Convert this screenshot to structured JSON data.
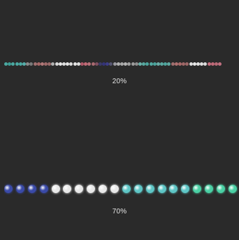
{
  "small_strip": {
    "zoom_label": "20%",
    "beads": [
      "#4ba9a1",
      "#3d9e96",
      "#4ba9a1",
      "#4ba9a1",
      "#4ba9a1",
      "#56aeaa",
      "#8a8a8a",
      "#7a7a7a",
      "#a07070",
      "#a86868",
      "#b07878",
      "#a06a6a",
      "#9a6a6a",
      "#b0b0b0",
      "#d8d8d8",
      "#e8e8e8",
      "#e0e0e0",
      "#e6e6e6",
      "#dcdcdc",
      "#e4e4e4",
      "#e0e0e0",
      "#b05a6a",
      "#c46a76",
      "#b8707a",
      "#a86a70",
      "#7f4e60",
      "#3a3a66",
      "#343478",
      "#3c3c86",
      "#555570",
      "#9a9aa0",
      "#b0b0b0",
      "#a8a8a8",
      "#b4b4b4",
      "#a0a0a0",
      "#9c9c9c",
      "#909090",
      "#6ab0a8",
      "#58a8a0",
      "#4aa49c",
      "#52a8a0",
      "#4aa49c",
      "#6aaca6",
      "#5aa8a0",
      "#4ea69e",
      "#60a8a0",
      "#a07070",
      "#b07070",
      "#a86a6a",
      "#a06868",
      "#9c6868",
      "#e0e0e0",
      "#e8e8e8",
      "#e4e4e4",
      "#e0e0e0",
      "#dcdcdc",
      "#c87080",
      "#c06a78",
      "#b86a76",
      "#c07080"
    ]
  },
  "large_strip": {
    "zoom_label": "70%",
    "beads": [
      "#3a4aa8",
      "#3a4aa8",
      "#3a4aa8",
      "#3a4aa8",
      "#e8e8e8",
      "#e8e8e8",
      "#e8e8e8",
      "#e8e8e8",
      "#e8e8e8",
      "#e8e8e8",
      "#5ec6c6",
      "#5ec6c6",
      "#5ec6c6",
      "#5ec6c6",
      "#5ec6c6",
      "#5ec6c6",
      "#4ad0a4",
      "#4ad0a4",
      "#4ad0a4",
      "#4ad0a4"
    ]
  }
}
